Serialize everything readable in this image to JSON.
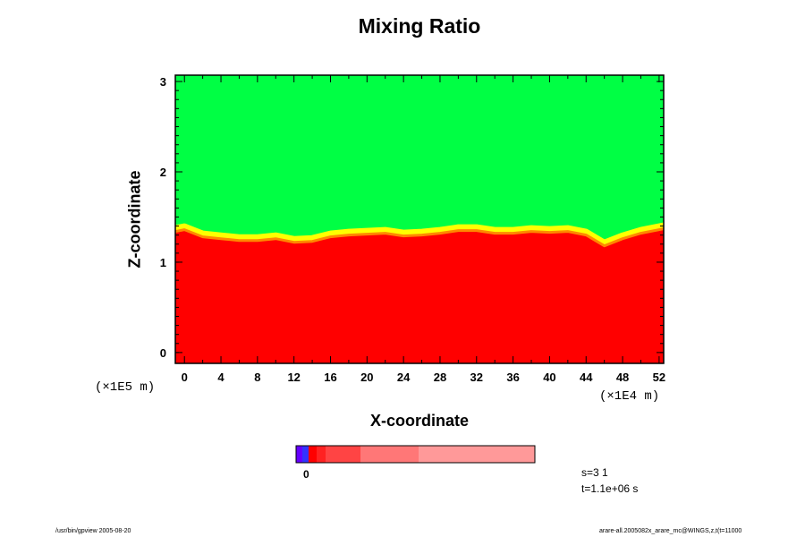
{
  "chart_data": {
    "type": "heatmap",
    "title": "Mixing Ratio",
    "xlabel": "X-coordinate",
    "ylabel": "Z-coordinate",
    "x_scale_label": "(×1E4 m)",
    "y_scale_label": "(×1E5 m)",
    "xlim": [
      -1,
      52.5
    ],
    "ylim": [
      -0.12,
      3.07
    ],
    "x_ticks": [
      0,
      4,
      8,
      12,
      16,
      20,
      24,
      28,
      32,
      36,
      40,
      44,
      48,
      52
    ],
    "y_ticks": [
      0,
      1,
      2,
      3
    ],
    "upper_region_color": "#00ff44",
    "lower_region_color": "#ff0000",
    "interface_z": [
      [
        -1,
        1.38
      ],
      [
        0,
        1.4
      ],
      [
        2,
        1.32
      ],
      [
        4,
        1.3
      ],
      [
        6,
        1.28
      ],
      [
        8,
        1.28
      ],
      [
        10,
        1.3
      ],
      [
        12,
        1.26
      ],
      [
        14,
        1.27
      ],
      [
        16,
        1.32
      ],
      [
        18,
        1.34
      ],
      [
        20,
        1.35
      ],
      [
        22,
        1.36
      ],
      [
        24,
        1.33
      ],
      [
        26,
        1.34
      ],
      [
        28,
        1.36
      ],
      [
        30,
        1.39
      ],
      [
        32,
        1.39
      ],
      [
        34,
        1.36
      ],
      [
        36,
        1.36
      ],
      [
        38,
        1.38
      ],
      [
        40,
        1.37
      ],
      [
        42,
        1.38
      ],
      [
        44,
        1.34
      ],
      [
        46,
        1.22
      ],
      [
        48,
        1.3
      ],
      [
        50,
        1.36
      ],
      [
        52,
        1.4
      ],
      [
        52.5,
        1.41
      ]
    ],
    "colorbar": {
      "zero_label": "0",
      "colors": [
        "#6600ff",
        "#3333ff",
        "#ff0000",
        "#ff2222",
        "#ff4444",
        "#ff7777",
        "#ff9999"
      ]
    }
  },
  "info": {
    "s_label": "s=3 1",
    "t_label": "t=1.1e+06 s"
  },
  "footer": {
    "left": "/usr/bin/gpview 2005-08-20",
    "right": "arare-all.2005082x_arare_mc@WINGS,z,t(t=11000"
  }
}
